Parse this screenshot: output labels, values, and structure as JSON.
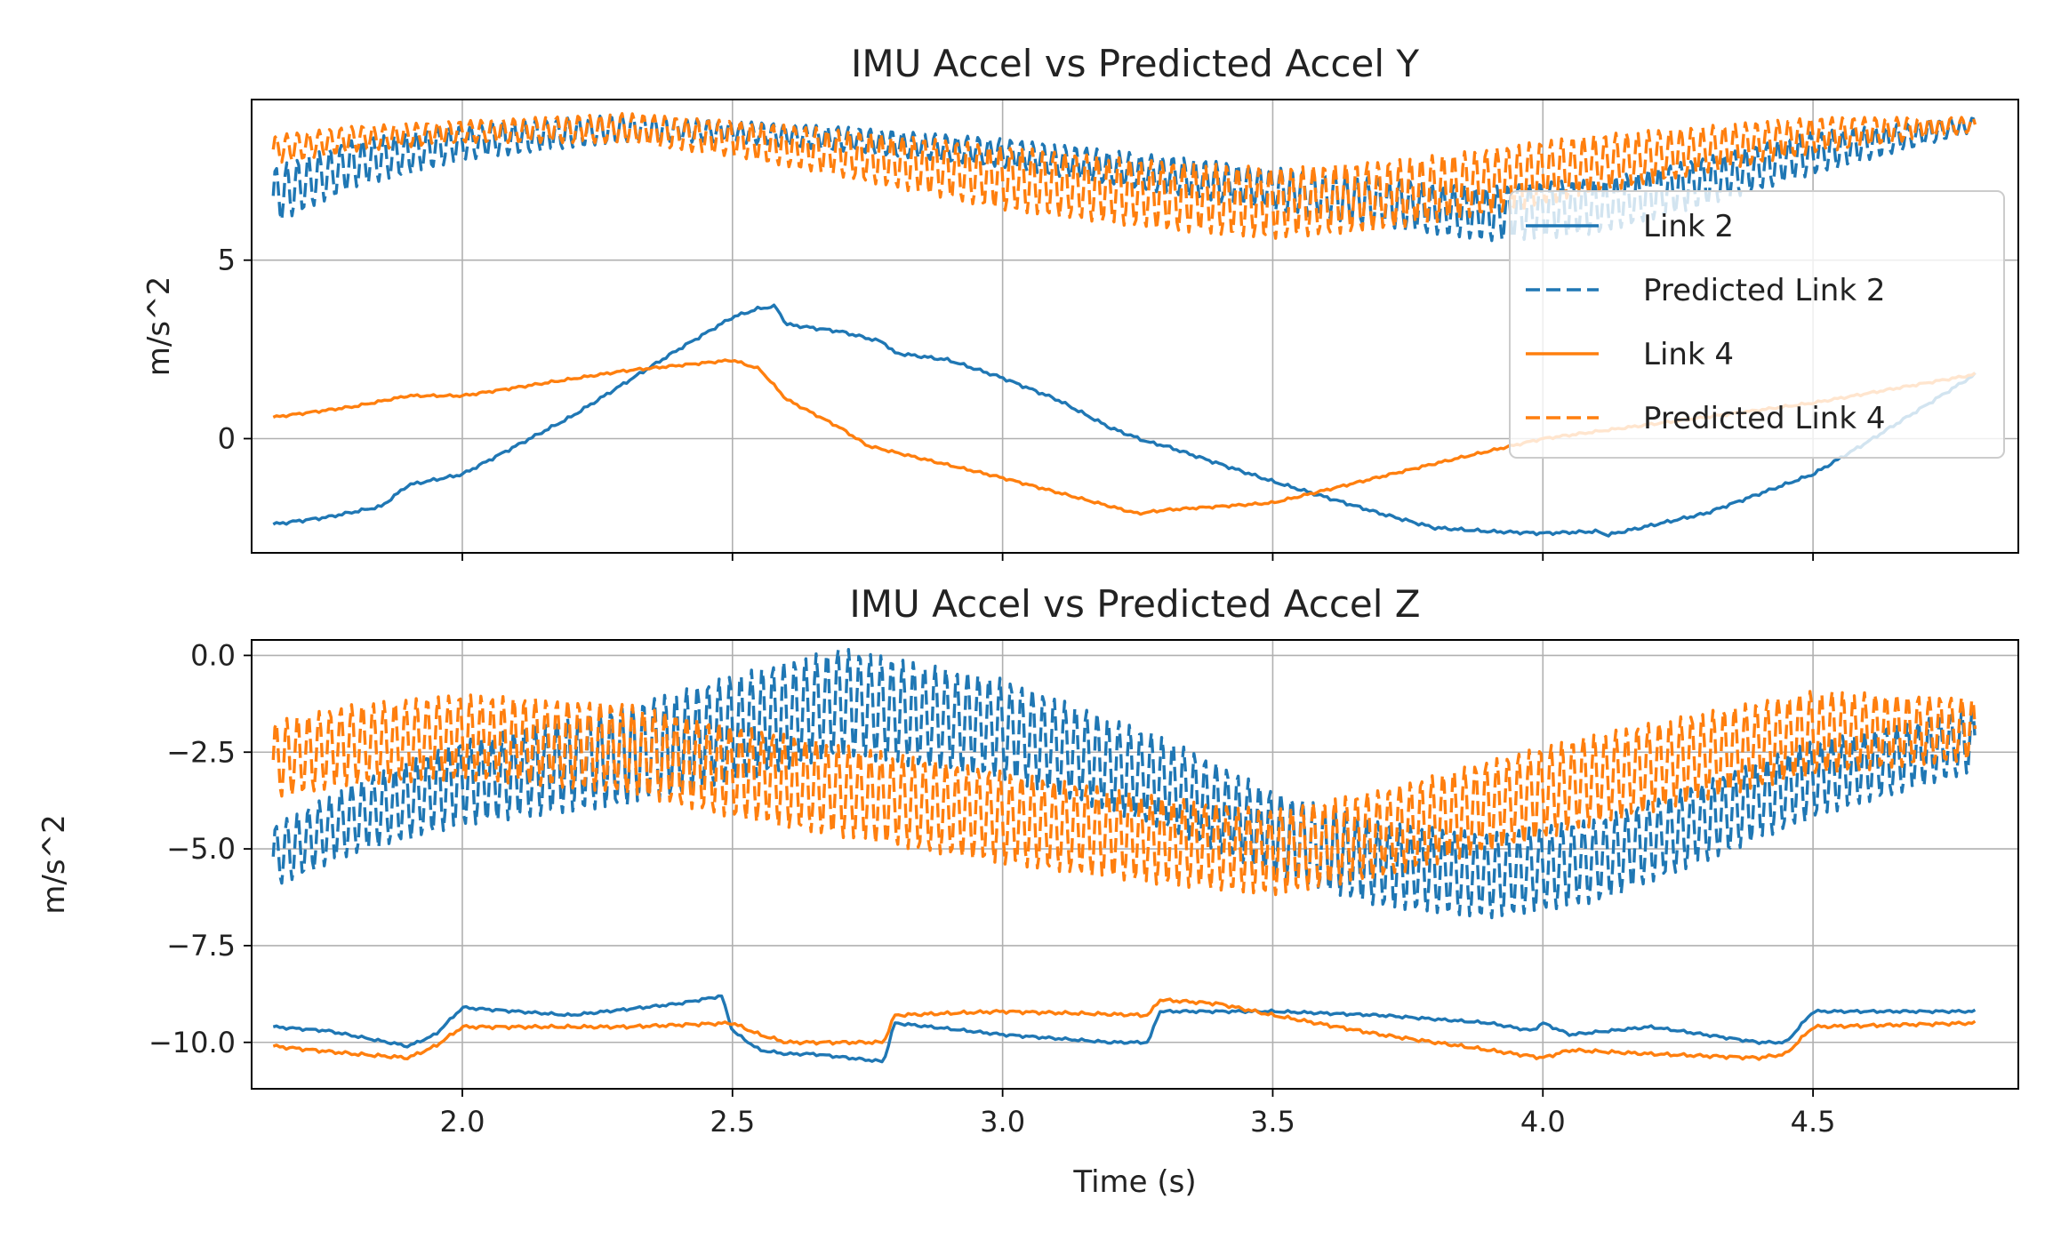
{
  "chart_data": [
    {
      "type": "line",
      "title": "IMU Accel vs Predicted Accel Y",
      "xlabel": "",
      "ylabel": "m/s^2",
      "xlim": [
        1.61,
        4.88
      ],
      "ylim": [
        -3.2,
        9.5
      ],
      "xticks": [
        2.0,
        2.5,
        3.0,
        3.5,
        4.0,
        4.5
      ],
      "xtick_labels": [
        "",
        "",
        "",
        "",
        "",
        ""
      ],
      "yticks": [
        0,
        5
      ],
      "ytick_labels": [
        "0",
        "5"
      ],
      "grid": true,
      "legend_position": "right",
      "legend": [
        "Link 2",
        "Predicted Link 2",
        "Link 4",
        "Predicted Link 4"
      ],
      "series": [
        {
          "name": "Link 2",
          "color": "#1f77b4",
          "style": "solid",
          "noise": 0.05,
          "x": [
            1.65,
            1.75,
            1.85,
            1.9,
            2.0,
            2.2,
            2.4,
            2.5,
            2.55,
            2.58,
            2.6,
            2.7,
            2.78,
            2.8,
            2.9,
            3.0,
            3.1,
            3.2,
            3.27,
            3.3,
            3.5,
            3.7,
            3.8,
            3.9,
            4.0,
            4.1,
            4.12,
            4.3,
            4.5,
            4.6,
            4.8
          ],
          "y": [
            -2.4,
            -2.2,
            -1.9,
            -1.3,
            -1.0,
            0.6,
            2.5,
            3.4,
            3.65,
            3.7,
            3.2,
            3.0,
            2.7,
            2.4,
            2.2,
            1.7,
            1.1,
            0.3,
            -0.1,
            -0.2,
            -1.2,
            -2.1,
            -2.5,
            -2.6,
            -2.65,
            -2.6,
            -2.7,
            -2.1,
            -1.0,
            -0.1,
            1.8
          ]
        },
        {
          "name": "Predicted Link 2",
          "color": "#1f77b4",
          "style": "dashed",
          "osc_period": 0.02,
          "mid_x": [
            1.65,
            1.8,
            2.0,
            2.3,
            2.5,
            2.7,
            3.0,
            3.3,
            3.5,
            3.7,
            3.9,
            4.1,
            4.3,
            4.5,
            4.8
          ],
          "mid_y": [
            6.8,
            7.7,
            8.3,
            8.7,
            8.6,
            8.4,
            8.0,
            7.4,
            7.0,
            6.6,
            6.3,
            6.5,
            7.2,
            8.0,
            8.8
          ],
          "amp_x": [
            1.65,
            2.0,
            2.5,
            3.0,
            3.5,
            4.0,
            4.5,
            4.8
          ],
          "amp_y": [
            0.8,
            0.5,
            0.3,
            0.4,
            0.6,
            0.8,
            0.6,
            0.2
          ]
        },
        {
          "name": "Link 4",
          "color": "#ff7f0e",
          "style": "solid",
          "noise": 0.04,
          "x": [
            1.65,
            1.8,
            1.9,
            2.0,
            2.3,
            2.5,
            2.55,
            2.6,
            2.7,
            2.75,
            3.0,
            3.25,
            3.3,
            3.5,
            3.8,
            4.0,
            4.3,
            4.5,
            4.8
          ],
          "y": [
            0.6,
            0.9,
            1.2,
            1.2,
            1.9,
            2.2,
            1.95,
            1.1,
            0.3,
            -0.2,
            -1.1,
            -2.1,
            -2.0,
            -1.8,
            -0.7,
            0.0,
            0.6,
            1.0,
            1.8
          ]
        },
        {
          "name": "Predicted Link 4",
          "color": "#ff7f0e",
          "style": "dashed",
          "osc_period": 0.02,
          "mid_x": [
            1.65,
            1.8,
            2.0,
            2.3,
            2.5,
            2.7,
            3.0,
            3.3,
            3.5,
            3.7,
            3.9,
            4.1,
            4.3,
            4.5,
            4.8
          ],
          "mid_y": [
            8.1,
            8.4,
            8.6,
            8.7,
            8.4,
            8.0,
            7.3,
            6.8,
            6.6,
            6.8,
            7.2,
            7.7,
            8.1,
            8.5,
            8.8
          ],
          "amp_x": [
            1.65,
            2.0,
            2.5,
            3.0,
            3.5,
            4.0,
            4.5,
            4.8
          ],
          "amp_y": [
            0.4,
            0.3,
            0.5,
            0.9,
            1.0,
            0.9,
            0.5,
            0.2
          ]
        }
      ]
    },
    {
      "type": "line",
      "title": "IMU Accel vs Predicted Accel Z",
      "xlabel": "Time (s)",
      "ylabel": "m/s^2",
      "xlim": [
        1.61,
        4.88
      ],
      "ylim": [
        -11.2,
        0.4
      ],
      "xticks": [
        2.0,
        2.5,
        3.0,
        3.5,
        4.0,
        4.5
      ],
      "xtick_labels": [
        "2.0",
        "2.5",
        "3.0",
        "3.5",
        "4.0",
        "4.5"
      ],
      "yticks": [
        0.0,
        -2.5,
        -5.0,
        -7.5,
        -10.0
      ],
      "ytick_labels": [
        "0.0",
        "−2.5",
        "−5.0",
        "−7.5",
        "−10.0"
      ],
      "grid": true,
      "series": [
        {
          "name": "Link 2",
          "color": "#1f77b4",
          "style": "solid",
          "noise": 0.04,
          "x": [
            1.65,
            1.75,
            1.9,
            1.95,
            2.0,
            2.2,
            2.4,
            2.48,
            2.5,
            2.55,
            2.6,
            2.65,
            2.78,
            2.8,
            3.0,
            3.2,
            3.27,
            3.29,
            3.5,
            3.7,
            3.9,
            3.98,
            4.0,
            4.05,
            4.2,
            4.4,
            4.45,
            4.5,
            4.6,
            4.8
          ],
          "y": [
            -9.6,
            -9.7,
            -10.1,
            -9.8,
            -9.1,
            -9.3,
            -9.0,
            -8.8,
            -9.7,
            -10.2,
            -10.3,
            -10.3,
            -10.5,
            -9.5,
            -9.8,
            -10.0,
            -10.0,
            -9.2,
            -9.2,
            -9.3,
            -9.5,
            -9.7,
            -9.5,
            -9.8,
            -9.6,
            -10.0,
            -10.0,
            -9.2,
            -9.2,
            -9.2
          ]
        },
        {
          "name": "Link 4",
          "color": "#ff7f0e",
          "style": "solid",
          "noise": 0.05,
          "x": [
            1.65,
            1.8,
            1.9,
            1.95,
            2.0,
            2.3,
            2.5,
            2.55,
            2.6,
            2.7,
            2.78,
            2.8,
            3.0,
            3.27,
            3.29,
            3.4,
            3.5,
            3.7,
            3.9,
            4.0,
            4.05,
            4.2,
            4.4,
            4.45,
            4.5,
            4.8
          ],
          "y": [
            -10.1,
            -10.3,
            -10.4,
            -10.1,
            -9.6,
            -9.6,
            -9.5,
            -9.8,
            -10.0,
            -10.0,
            -10.0,
            -9.3,
            -9.2,
            -9.3,
            -8.9,
            -9.0,
            -9.3,
            -9.8,
            -10.2,
            -10.4,
            -10.2,
            -10.3,
            -10.4,
            -10.3,
            -9.6,
            -9.5
          ]
        },
        {
          "name": "Predicted Link 2",
          "color": "#1f77b4",
          "style": "dashed",
          "osc_period": 0.02,
          "mid_x": [
            1.65,
            1.8,
            2.0,
            2.3,
            2.5,
            2.7,
            3.0,
            3.3,
            3.5,
            3.7,
            3.9,
            4.1,
            4.3,
            4.5,
            4.8
          ],
          "mid_y": [
            -5.2,
            -4.2,
            -3.3,
            -2.6,
            -1.9,
            -1.2,
            -1.9,
            -3.3,
            -4.6,
            -5.4,
            -5.7,
            -5.3,
            -4.3,
            -3.2,
            -2.2
          ],
          "amp_x": [
            1.65,
            2.0,
            2.5,
            2.7,
            3.0,
            3.5,
            4.0,
            4.5,
            4.8
          ],
          "amp_y": [
            0.8,
            1.1,
            1.4,
            1.4,
            1.3,
            1.1,
            1.1,
            1.0,
            0.8
          ]
        },
        {
          "name": "Predicted Link 4",
          "color": "#ff7f0e",
          "style": "dashed",
          "osc_period": 0.02,
          "mid_x": [
            1.65,
            1.8,
            2.0,
            2.3,
            2.5,
            2.7,
            3.0,
            3.3,
            3.5,
            3.7,
            3.9,
            4.1,
            4.3,
            4.5,
            4.8
          ],
          "mid_y": [
            -2.7,
            -2.3,
            -2.1,
            -2.4,
            -3.0,
            -3.5,
            -4.2,
            -4.8,
            -5.1,
            -4.6,
            -3.9,
            -3.2,
            -2.6,
            -2.0,
            -1.9
          ],
          "amp_x": [
            1.65,
            2.0,
            2.5,
            3.0,
            3.5,
            4.0,
            4.5,
            4.8
          ],
          "amp_y": [
            1.0,
            1.1,
            1.2,
            1.2,
            1.1,
            1.2,
            1.1,
            0.8
          ]
        }
      ]
    }
  ]
}
